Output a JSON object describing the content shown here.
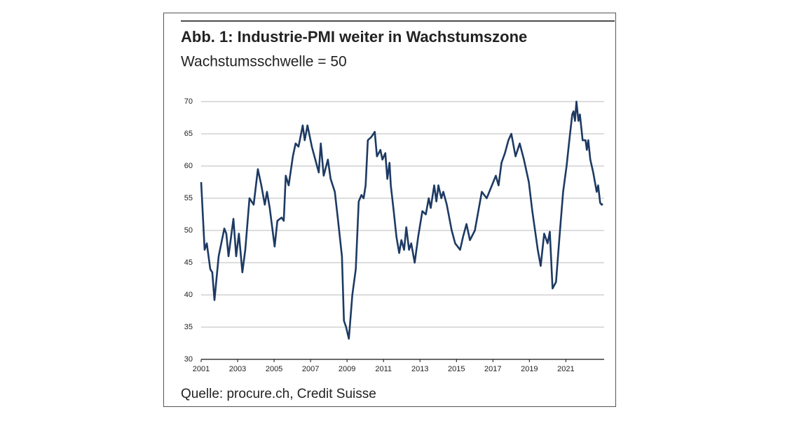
{
  "chart_data": {
    "type": "line",
    "title": "Abb. 1: Industrie-PMI weiter in Wachstumszone",
    "subtitle": "Wachstumsschwelle = 50",
    "source": "Quelle: procure.ch, Credit Suisse",
    "color": "#1d3a63",
    "grid": true,
    "xlim": [
      2001,
      2023.1
    ],
    "xticks": [
      2001,
      2003,
      2005,
      2007,
      2009,
      2011,
      2013,
      2015,
      2017,
      2019,
      2021
    ],
    "ylim": [
      30,
      70
    ],
    "yticks": [
      30,
      35,
      40,
      45,
      50,
      55,
      60,
      65,
      70
    ],
    "x": [
      2001.0,
      2001.19,
      2001.31,
      2001.5,
      2001.61,
      2001.73,
      2001.96,
      2002.27,
      2002.38,
      2002.5,
      2002.77,
      2002.92,
      2003.07,
      2003.26,
      2003.42,
      2003.65,
      2003.88,
      2004.11,
      2004.3,
      2004.49,
      2004.61,
      2004.76,
      2005.03,
      2005.18,
      2005.41,
      2005.53,
      2005.64,
      2005.8,
      2006.03,
      2006.18,
      2006.34,
      2006.57,
      2006.68,
      2006.83,
      2007.07,
      2007.26,
      2007.45,
      2007.56,
      2007.72,
      2007.95,
      2008.1,
      2008.33,
      2008.49,
      2008.72,
      2008.83,
      2008.95,
      2009.1,
      2009.29,
      2009.48,
      2009.64,
      2009.79,
      2009.91,
      2010.02,
      2010.14,
      2010.33,
      2010.52,
      2010.64,
      2010.83,
      2010.94,
      2011.1,
      2011.21,
      2011.33,
      2011.4,
      2011.56,
      2011.71,
      2011.86,
      2011.98,
      2012.13,
      2012.25,
      2012.4,
      2012.52,
      2012.71,
      2012.9,
      2013.13,
      2013.32,
      2013.48,
      2013.59,
      2013.78,
      2013.9,
      2014.01,
      2014.17,
      2014.28,
      2014.47,
      2014.74,
      2014.93,
      2015.2,
      2015.36,
      2015.55,
      2015.74,
      2016.01,
      2016.2,
      2016.39,
      2016.66,
      2017.16,
      2017.31,
      2017.47,
      2017.66,
      2017.85,
      2018.01,
      2018.24,
      2018.47,
      2018.7,
      2018.97,
      2019.16,
      2019.31,
      2019.46,
      2019.62,
      2019.81,
      2020.0,
      2020.12,
      2020.27,
      2020.46,
      2020.65,
      2020.85,
      2021.04,
      2021.19,
      2021.35,
      2021.42,
      2021.5,
      2021.58,
      2021.69,
      2021.77,
      2021.92,
      2022.08,
      2022.15,
      2022.23,
      2022.34,
      2022.5,
      2022.69,
      2022.77,
      2022.88,
      2022.96,
      2023.03
    ],
    "values": [
      57.5,
      47,
      48,
      44,
      43.5,
      39.2,
      46,
      50.3,
      49.5,
      46,
      51.8,
      46,
      49.5,
      43.5,
      47,
      55,
      54,
      59.5,
      57,
      54,
      56,
      53.5,
      47.5,
      51.5,
      52,
      51.5,
      58.5,
      57,
      61.5,
      63.5,
      63,
      66.3,
      64,
      66.3,
      63,
      61,
      59,
      63.5,
      58.5,
      61,
      58,
      56,
      52,
      46,
      36,
      35,
      33.2,
      40,
      44,
      54.5,
      55.5,
      55,
      57,
      64,
      64.5,
      65.3,
      61.5,
      62.5,
      61,
      62,
      58,
      60.5,
      57,
      53,
      49,
      46.5,
      48.5,
      47,
      50.5,
      47,
      48,
      45,
      49,
      53,
      52.5,
      55,
      53.5,
      57,
      54.5,
      57,
      55,
      56,
      54,
      50,
      48,
      47,
      49,
      51,
      48.5,
      50,
      53,
      56,
      55,
      58.5,
      57,
      60.5,
      62,
      64,
      65,
      61.5,
      63.5,
      61,
      57.5,
      53,
      50,
      47,
      44.5,
      49.5,
      48,
      49.8,
      41,
      42,
      49,
      56,
      60,
      64,
      68,
      68.5,
      67,
      70,
      67,
      68,
      64,
      64,
      62.5,
      64,
      61,
      59,
      56,
      57,
      54.3,
      54,
      54.1
    ]
  }
}
